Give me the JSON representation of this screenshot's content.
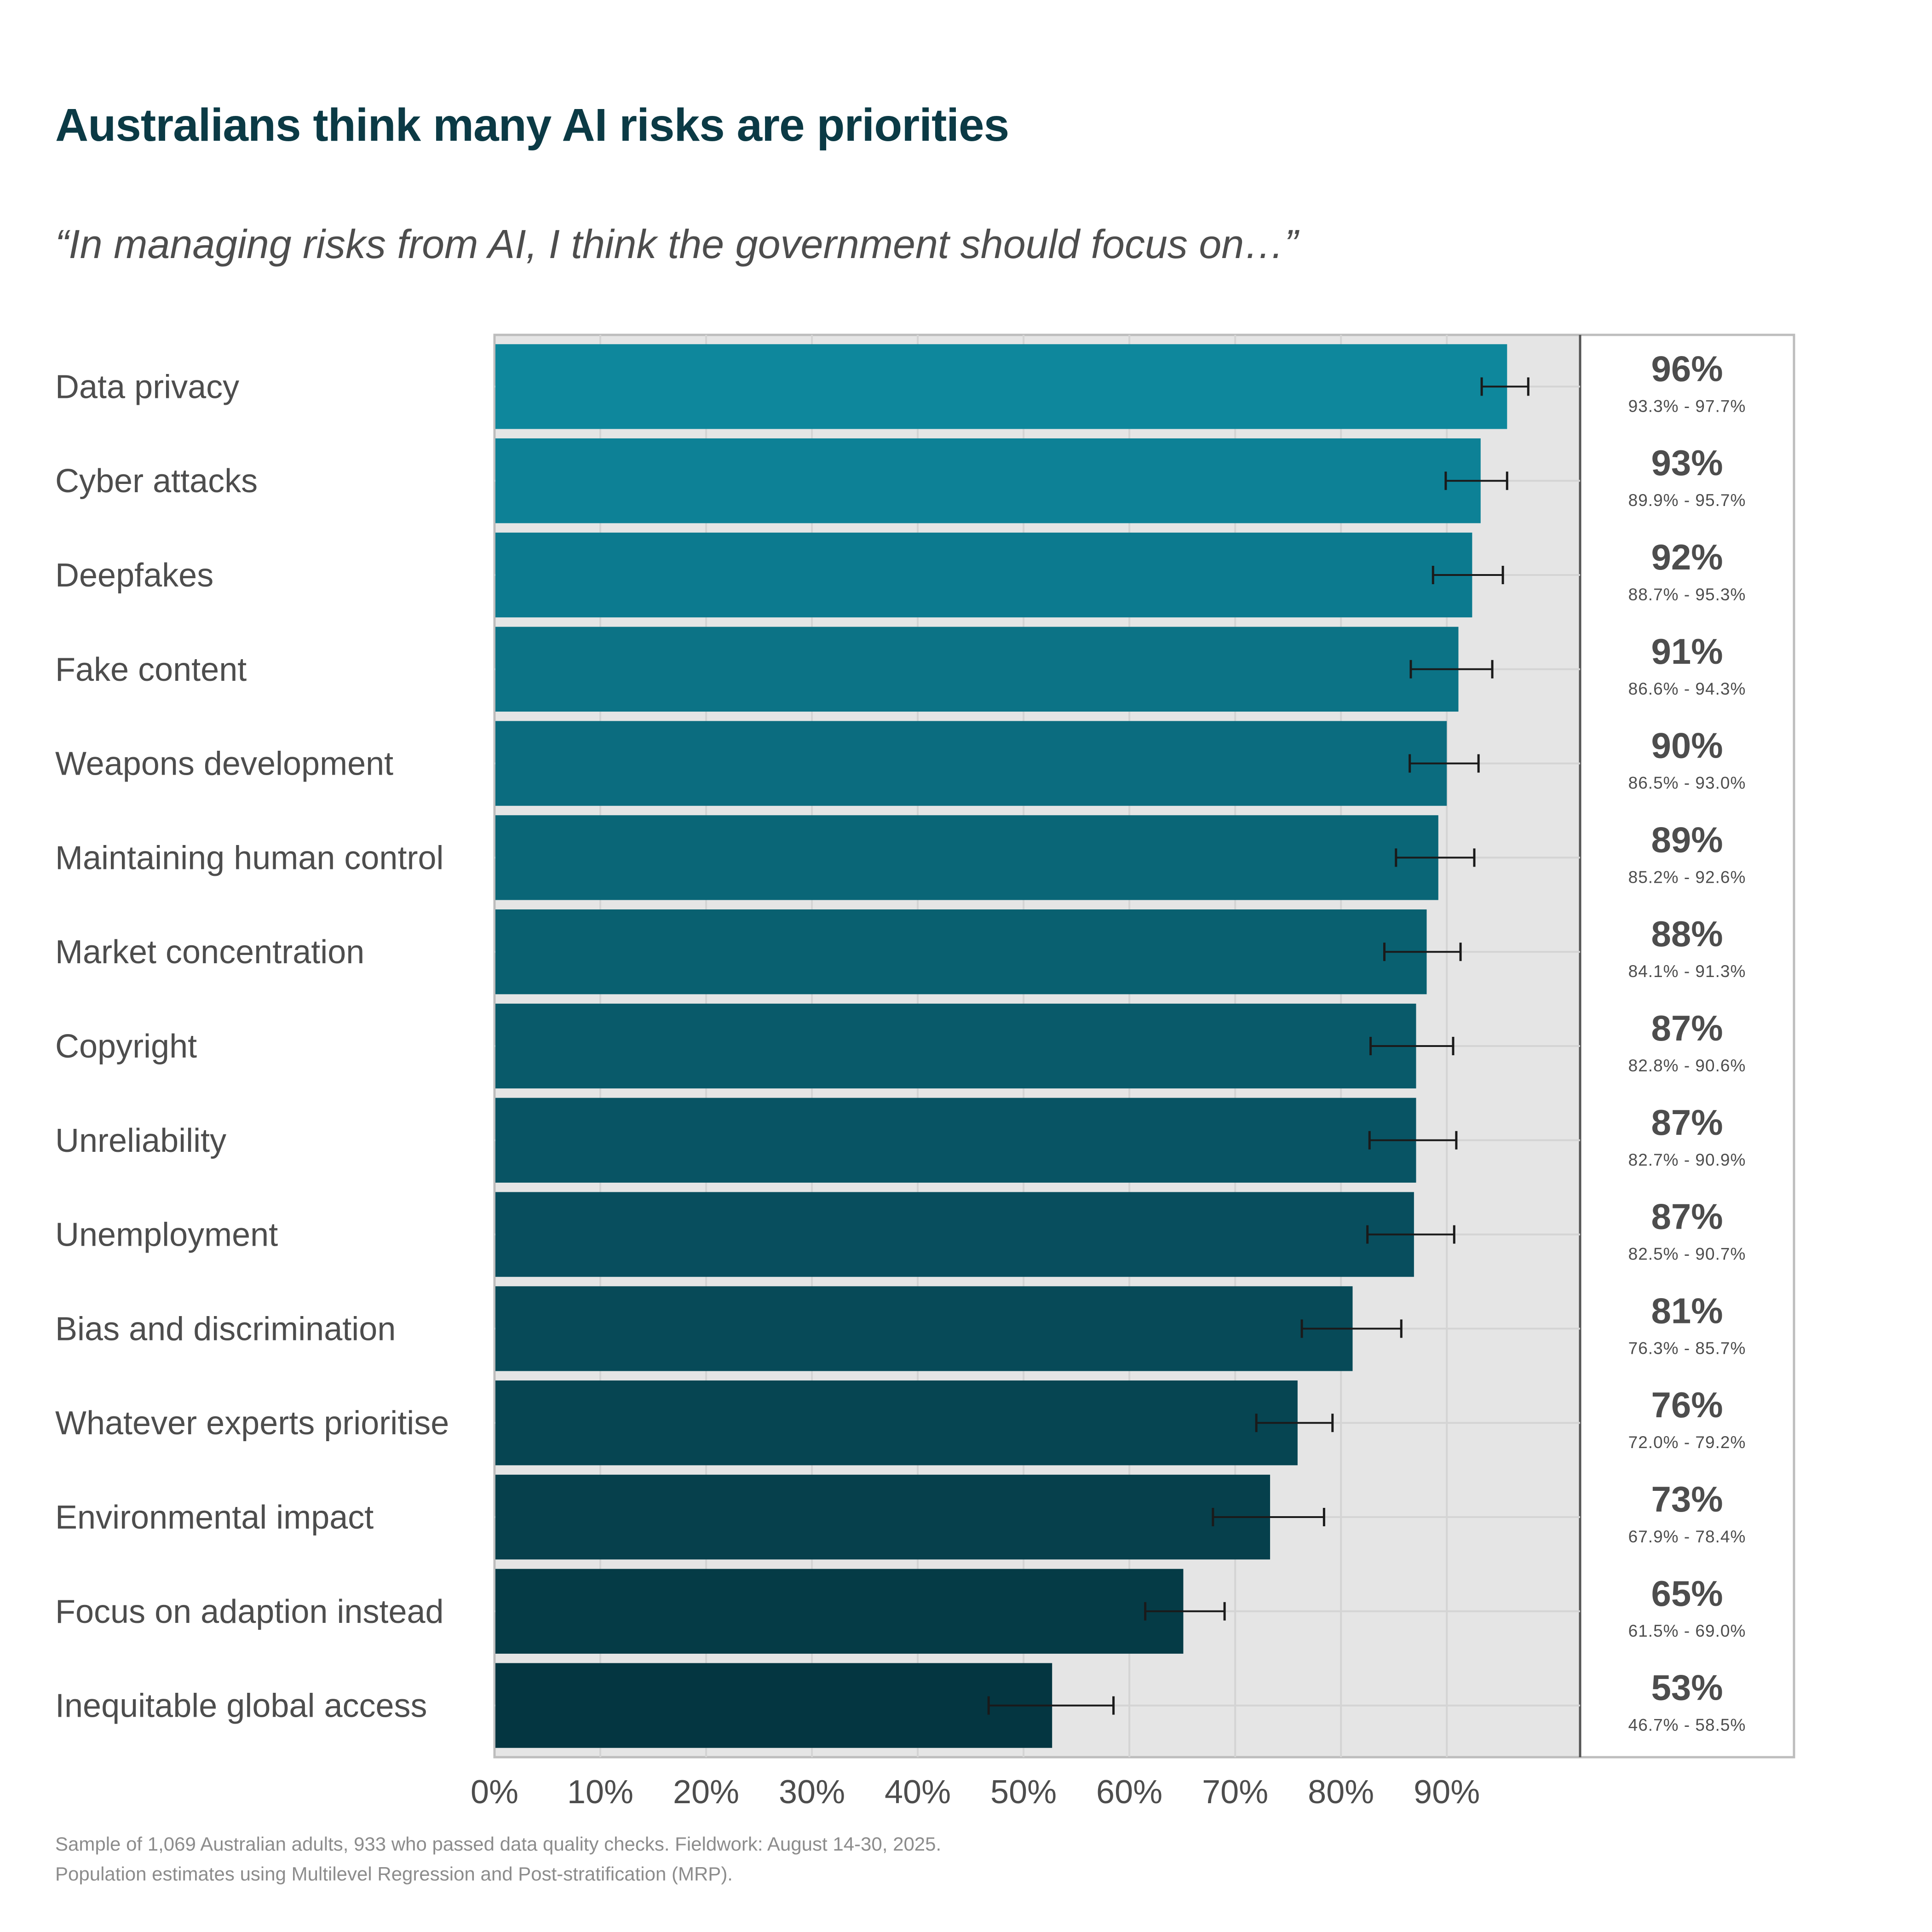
{
  "chart_data": {
    "type": "bar",
    "orientation": "horizontal",
    "title": "Australians think many AI risks are priorities",
    "subtitle": "“In managing risks from AI, I think the government should focus on…”",
    "xlabel": "",
    "ylabel": "",
    "xlim": [
      0,
      102.6
    ],
    "x_ticks": [
      "0%",
      "10%",
      "20%",
      "30%",
      "40%",
      "50%",
      "60%",
      "70%",
      "80%",
      "90%"
    ],
    "x_tick_values": [
      0,
      10,
      20,
      30,
      40,
      50,
      60,
      70,
      80,
      90
    ],
    "grid": true,
    "error_bars": true,
    "categories": [
      "Data privacy",
      "Cyber attacks",
      "Deepfakes",
      "Fake content",
      "Weapons development",
      "Maintaining human control",
      "Market concentration",
      "Copyright",
      "Unreliability",
      "Unemployment",
      "Bias and discrimination",
      "Whatever experts prioritise",
      "Environmental impact",
      "Focus on adaption instead",
      "Inequitable global access"
    ],
    "values": [
      95.7,
      93.2,
      92.4,
      91.1,
      90.0,
      89.2,
      88.1,
      87.1,
      87.1,
      86.9,
      81.1,
      75.9,
      73.3,
      65.1,
      52.7
    ],
    "ci_low": [
      93.3,
      89.9,
      88.7,
      86.6,
      86.5,
      85.2,
      84.1,
      82.8,
      82.7,
      82.5,
      76.3,
      72.0,
      67.9,
      61.5,
      46.7
    ],
    "ci_high": [
      97.7,
      95.7,
      95.3,
      94.3,
      93.0,
      92.6,
      91.3,
      90.6,
      90.9,
      90.7,
      85.7,
      79.2,
      78.4,
      69.0,
      58.5
    ],
    "value_labels": [
      "96%",
      "93%",
      "92%",
      "91%",
      "90%",
      "89%",
      "88%",
      "87%",
      "87%",
      "87%",
      "81%",
      "76%",
      "73%",
      "65%",
      "53%"
    ],
    "ci_labels": [
      "93.3% - 97.7%",
      "89.9% - 95.7%",
      "88.7% - 95.3%",
      "86.6% - 94.3%",
      "86.5% - 93.0%",
      "85.2% - 92.6%",
      "84.1% - 91.3%",
      "82.8% - 90.6%",
      "82.7% - 90.9%",
      "82.5% - 90.7%",
      "76.3% - 85.7%",
      "72.0% - 79.2%",
      "67.9% - 78.4%",
      "61.5% - 69.0%",
      "46.7% - 58.5%"
    ],
    "bar_colors": [
      "#0e879c",
      "#0d8196",
      "#0c7a8f",
      "#0c7386",
      "#0b6c7f",
      "#0a6677",
      "#096070",
      "#095a6a",
      "#085464",
      "#084e5e",
      "#074a58",
      "#064552",
      "#06404c",
      "#053b46",
      "#043641"
    ]
  },
  "colors": {
    "title": "#0b3a45",
    "text": "#4d4d4d",
    "footnote": "#8c8c8c",
    "plot_bg": "#e5e5e5",
    "grid": "#d4d4d4",
    "error_bar": "#1a1a1a"
  },
  "footnotes": [
    "Sample of 1,069 Australian adults, 933 who passed data quality checks. Fieldwork: August 14-30, 2025.",
    "Population estimates using Multilevel Regression and Post-stratification (MRP)."
  ]
}
